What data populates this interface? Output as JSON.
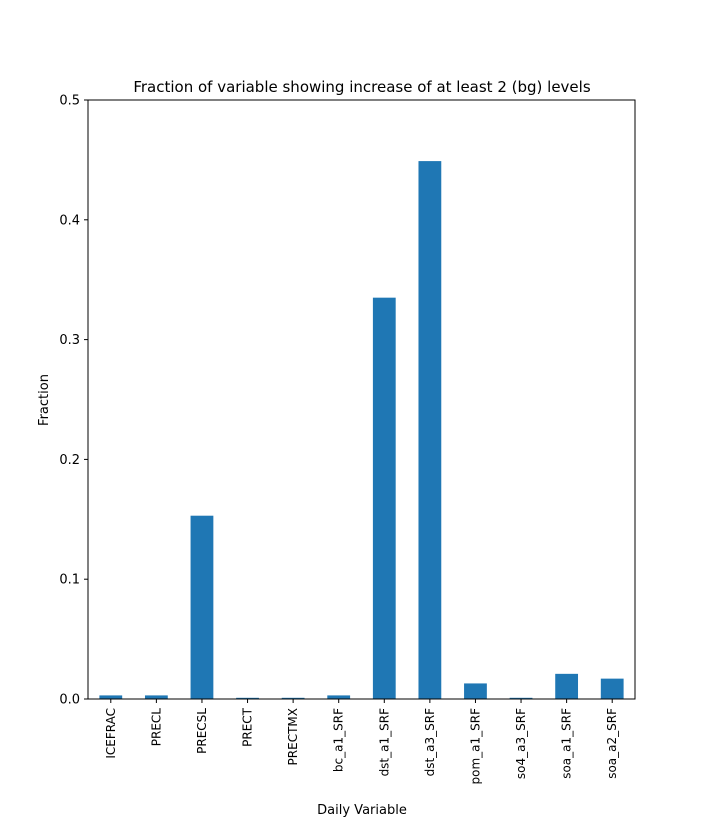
{
  "chart_data": {
    "type": "bar",
    "title": "Fraction of variable showing increase of at least 2 (bg) levels",
    "xlabel": "Daily Variable",
    "ylabel": "Fraction",
    "categories": [
      "ICEFRAC",
      "PRECL",
      "PRECSL",
      "PRECT",
      "PRECTMX",
      "bc_a1_SRF",
      "dst_a1_SRF",
      "dst_a3_SRF",
      "pom_a1_SRF",
      "so4_a3_SRF",
      "soa_a1_SRF",
      "soa_a2_SRF"
    ],
    "values": [
      0.003,
      0.003,
      0.153,
      0.001,
      0.001,
      0.003,
      0.335,
      0.449,
      0.013,
      0.001,
      0.021,
      0.017
    ],
    "ylim": [
      0,
      0.5
    ],
    "yticks": [
      "0.0",
      "0.1",
      "0.2",
      "0.3",
      "0.4",
      "0.5"
    ],
    "grid": false,
    "bar_color": "#1f77b4"
  }
}
